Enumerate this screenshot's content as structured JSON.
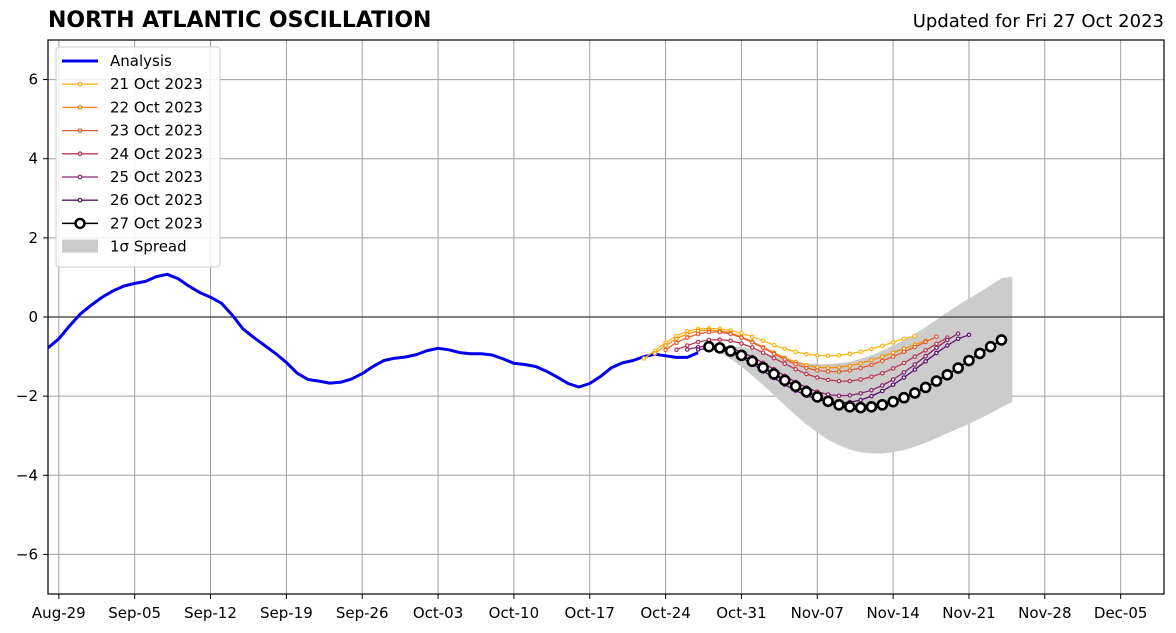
{
  "chart_data": {
    "type": "line",
    "title": "NORTH ATLANTIC OSCILLATION",
    "subtitle": "Updated for Fri 27 Oct 2023",
    "xlabel": "",
    "ylabel": "",
    "xlim": [
      "2023-08-28",
      "2023-12-09"
    ],
    "ylim": [
      -7,
      7
    ],
    "grid": true,
    "legend_position": "top-left",
    "x_ticks": [
      "2023-08-29",
      "2023-09-05",
      "2023-09-12",
      "2023-09-19",
      "2023-09-26",
      "2023-10-03",
      "2023-10-10",
      "2023-10-17",
      "2023-10-24",
      "2023-10-31",
      "2023-11-07",
      "2023-11-14",
      "2023-11-21",
      "2023-11-28",
      "2023-12-05"
    ],
    "x_tick_labels": [
      "Aug-29",
      "Sep-05",
      "Sep-12",
      "Sep-19",
      "Sep-26",
      "Oct-03",
      "Oct-10",
      "Oct-17",
      "Oct-24",
      "Oct-31",
      "Nov-07",
      "Nov-14",
      "Nov-21",
      "Nov-28",
      "Dec-05"
    ],
    "y_ticks": [
      -6,
      -4,
      -2,
      0,
      2,
      4,
      6
    ],
    "y_tick_labels": [
      "−6",
      "−4",
      "−2",
      "0",
      "2",
      "4",
      "6"
    ],
    "legend_entries": [
      "Analysis",
      "21 Oct 2023",
      "22 Oct 2023",
      "23 Oct 2023",
      "24 Oct 2023",
      "25 Oct 2023",
      "26 Oct 2023",
      "27 Oct 2023",
      "1σ Spread"
    ],
    "analysis": {
      "name": "Analysis",
      "color": "#0000ee",
      "x": [
        "2023-08-28",
        "2023-08-29",
        "2023-08-30",
        "2023-08-31",
        "2023-09-01",
        "2023-09-02",
        "2023-09-03",
        "2023-09-04",
        "2023-09-05",
        "2023-09-06",
        "2023-09-07",
        "2023-09-08",
        "2023-09-09",
        "2023-09-10",
        "2023-09-11",
        "2023-09-12",
        "2023-09-13",
        "2023-09-14",
        "2023-09-15",
        "2023-09-16",
        "2023-09-17",
        "2023-09-18",
        "2023-09-19",
        "2023-09-20",
        "2023-09-21",
        "2023-09-22",
        "2023-09-23",
        "2023-09-24",
        "2023-09-25",
        "2023-09-26",
        "2023-09-27",
        "2023-09-28",
        "2023-09-29",
        "2023-09-30",
        "2023-10-01",
        "2023-10-02",
        "2023-10-03",
        "2023-10-04",
        "2023-10-05",
        "2023-10-06",
        "2023-10-07",
        "2023-10-08",
        "2023-10-09",
        "2023-10-10",
        "2023-10-11",
        "2023-10-12",
        "2023-10-13",
        "2023-10-14",
        "2023-10-15",
        "2023-10-16",
        "2023-10-17",
        "2023-10-18",
        "2023-10-19",
        "2023-10-20",
        "2023-10-21",
        "2023-10-22",
        "2023-10-23",
        "2023-10-24",
        "2023-10-25",
        "2023-10-26",
        "2023-10-27"
      ],
      "values": [
        -0.78,
        -0.55,
        -0.22,
        0.08,
        0.3,
        0.5,
        0.66,
        0.78,
        0.85,
        0.9,
        1.02,
        1.08,
        0.97,
        0.78,
        0.62,
        0.5,
        0.35,
        0.05,
        -0.3,
        -0.52,
        -0.72,
        -0.92,
        -1.15,
        -1.42,
        -1.58,
        -1.62,
        -1.67,
        -1.65,
        -1.57,
        -1.43,
        -1.25,
        -1.1,
        -1.04,
        -1.01,
        -0.95,
        -0.85,
        -0.79,
        -0.83,
        -0.9,
        -0.93,
        -0.93,
        -0.96,
        -1.06,
        -1.17,
        -1.2,
        -1.25,
        -1.37,
        -1.52,
        -1.68,
        -1.77,
        -1.68,
        -1.5,
        -1.28,
        -1.16,
        -1.1,
        -1.0,
        -0.94,
        -0.98,
        -1.02,
        -1.02,
        -0.9
      ]
    },
    "forecasts": [
      {
        "name": "21 Oct 2023",
        "color": "#fbb61a",
        "x_start": "2023-10-22",
        "values": [
          -1.05,
          -0.85,
          -0.65,
          -0.48,
          -0.36,
          -0.3,
          -0.29,
          -0.3,
          -0.34,
          -0.41,
          -0.5,
          -0.6,
          -0.71,
          -0.8,
          -0.88,
          -0.94,
          -0.97,
          -0.98,
          -0.97,
          -0.93,
          -0.88,
          -0.81,
          -0.73,
          -0.64,
          -0.55,
          -0.48
        ]
      },
      {
        "name": "22 Oct 2023",
        "color": "#f98e09",
        "x_start": "2023-10-23",
        "values": [
          -0.92,
          -0.72,
          -0.55,
          -0.43,
          -0.35,
          -0.33,
          -0.35,
          -0.4,
          -0.5,
          -0.62,
          -0.76,
          -0.9,
          -1.03,
          -1.14,
          -1.22,
          -1.27,
          -1.28,
          -1.27,
          -1.23,
          -1.17,
          -1.09,
          -1.0,
          -0.9,
          -0.8,
          -0.7,
          -0.6
        ]
      },
      {
        "name": "23 Oct 2023",
        "color": "#e55c30",
        "x_start": "2023-10-24",
        "values": [
          -0.83,
          -0.65,
          -0.52,
          -0.43,
          -0.38,
          -0.38,
          -0.43,
          -0.52,
          -0.64,
          -0.78,
          -0.93,
          -1.07,
          -1.19,
          -1.29,
          -1.35,
          -1.38,
          -1.38,
          -1.35,
          -1.29,
          -1.21,
          -1.11,
          -1.0,
          -0.88,
          -0.76,
          -0.63,
          -0.5
        ]
      },
      {
        "name": "24 Oct 2023",
        "color": "#bc3754",
        "x_start": "2023-10-25",
        "values": [
          -0.83,
          -0.72,
          -0.63,
          -0.58,
          -0.57,
          -0.6,
          -0.67,
          -0.77,
          -0.9,
          -1.04,
          -1.18,
          -1.32,
          -1.44,
          -1.53,
          -1.59,
          -1.62,
          -1.62,
          -1.58,
          -1.51,
          -1.42,
          -1.3,
          -1.16,
          -1.0,
          -0.84,
          -0.68,
          -0.52
        ]
      },
      {
        "name": "25 Oct 2023",
        "color": "#8a226a",
        "x_start": "2023-10-26",
        "values": [
          -0.82,
          -0.76,
          -0.73,
          -0.74,
          -0.79,
          -0.88,
          -1.01,
          -1.16,
          -1.32,
          -1.49,
          -1.64,
          -1.78,
          -1.89,
          -1.96,
          -1.99,
          -1.98,
          -1.93,
          -1.85,
          -1.73,
          -1.58,
          -1.4,
          -1.2,
          -0.99,
          -0.78,
          -0.58,
          -0.42
        ]
      },
      {
        "name": "26 Oct 2023",
        "color": "#57106e",
        "x_start": "2023-10-27",
        "values": [
          -0.82,
          -0.8,
          -0.83,
          -0.9,
          -1.02,
          -1.18,
          -1.36,
          -1.54,
          -1.71,
          -1.86,
          -1.99,
          -2.08,
          -2.14,
          -2.17,
          -2.15,
          -2.1,
          -2.0,
          -1.87,
          -1.71,
          -1.53,
          -1.33,
          -1.12,
          -0.91,
          -0.72,
          -0.55,
          -0.45
        ]
      },
      {
        "name": "27 Oct 2023",
        "color": "#000000",
        "x_start": "2023-10-28",
        "values": [
          -0.75,
          -0.78,
          -0.86,
          -0.97,
          -1.12,
          -1.28,
          -1.44,
          -1.6,
          -1.75,
          -1.89,
          -2.02,
          -2.13,
          -2.22,
          -2.27,
          -2.29,
          -2.27,
          -2.22,
          -2.14,
          -2.04,
          -1.92,
          -1.78,
          -1.62,
          -1.46,
          -1.29,
          -1.1,
          -0.92,
          -0.75,
          -0.58
        ]
      }
    ],
    "spread": {
      "name": "1σ Spread",
      "color": "#cccccc",
      "x_start": "2023-10-28",
      "upper": [
        -0.75,
        -0.73,
        -0.73,
        -0.76,
        -0.82,
        -0.9,
        -0.98,
        -1.05,
        -1.12,
        -1.17,
        -1.19,
        -1.19,
        -1.17,
        -1.13,
        -1.06,
        -0.97,
        -0.85,
        -0.72,
        -0.58,
        -0.43,
        -0.26,
        -0.07,
        0.12,
        0.3,
        0.47,
        0.63,
        0.8,
        0.98,
        1.02
      ],
      "lower": [
        -0.75,
        -0.9,
        -1.06,
        -1.25,
        -1.48,
        -1.72,
        -1.97,
        -2.23,
        -2.48,
        -2.71,
        -2.92,
        -3.1,
        -3.24,
        -3.35,
        -3.42,
        -3.45,
        -3.45,
        -3.42,
        -3.36,
        -3.28,
        -3.18,
        -3.06,
        -2.94,
        -2.82,
        -2.7,
        -2.57,
        -2.43,
        -2.28,
        -2.15
      ]
    }
  }
}
